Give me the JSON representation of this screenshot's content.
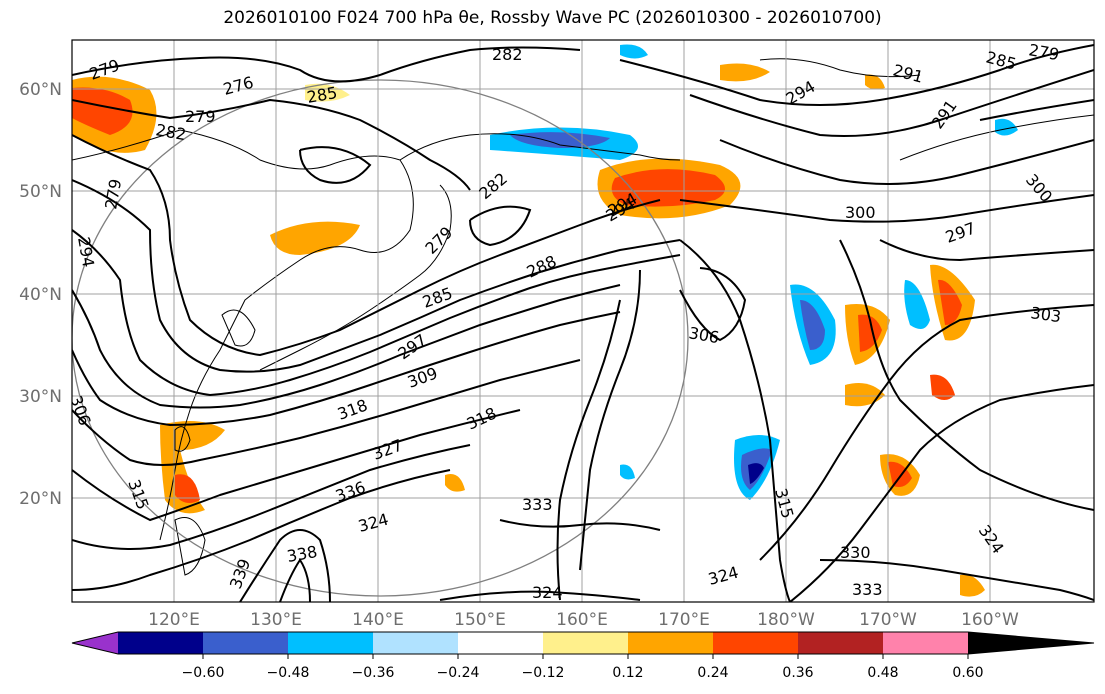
{
  "title": "2026010100 F024 700 hPa θe, Rossby Wave PC (2026010300 - 2026010700)",
  "map": {
    "lat_labels": [
      "60°N",
      "50°N",
      "40°N",
      "30°N",
      "20°N"
    ],
    "lon_labels": [
      "120°E",
      "130°E",
      "140°E",
      "150°E",
      "160°E",
      "170°E",
      "180°W",
      "170°W",
      "160°W"
    ],
    "contour_labels": [
      "279",
      "276",
      "279",
      "282",
      "285",
      "282",
      "291",
      "285",
      "279",
      "294",
      "291",
      "300",
      "282",
      "279",
      "294",
      "288",
      "285",
      "297",
      "309",
      "318",
      "318",
      "306",
      "300",
      "297",
      "303",
      "327",
      "336",
      "315",
      "324",
      "333",
      "338",
      "339",
      "315",
      "330",
      "324",
      "324",
      "333",
      "324",
      "294",
      "294",
      "306",
      "279"
    ]
  },
  "colorbar": {
    "labels": [
      "−0.60",
      "−0.48",
      "−0.36",
      "−0.24",
      "−0.12",
      "0.12",
      "0.24",
      "0.36",
      "0.48",
      "0.60"
    ],
    "colors": [
      "#9932cc",
      "#00008b",
      "#3a5fcd",
      "#00bfff",
      "#b0e2ff",
      "#ffffff",
      "#fff08c",
      "#ffa500",
      "#ff4500",
      "#b22222",
      "#ff82ab"
    ]
  }
}
